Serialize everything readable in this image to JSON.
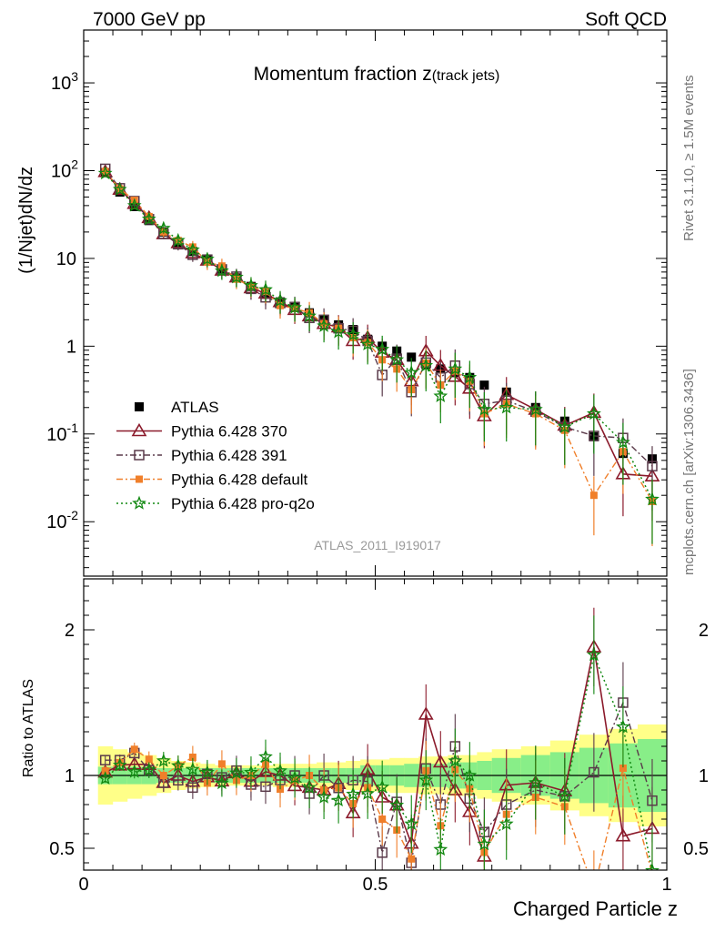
{
  "header": {
    "left": "7000 GeV pp",
    "right": "Soft QCD"
  },
  "side_texts": {
    "rivet": "Rivet 3.1.10, ≥ 1.5M events",
    "mcplots": "mcplots.cern.ch [arXiv:1306.3436]"
  },
  "watermark": "ATLAS_2011_I919017",
  "colors": {
    "data": "#000000",
    "p370": "#8b1a2b",
    "p391": "#5a3a4a",
    "pdefault": "#f07f2a",
    "pq2o": "#118811",
    "band_inner": "#88ee88",
    "band_outer": "#ffff88"
  },
  "chart_data": [
    {
      "type": "scatter",
      "title_main": "Momentum fraction ",
      "title_var": "z",
      "title_sub": "(track jets)",
      "ylabel": "(1/Njet)dN/dz",
      "yscale": "log",
      "ylim": [
        0.0024,
        4000
      ],
      "xlim": [
        0,
        1
      ],
      "y_ticks": [
        {
          "v": 0.01,
          "base": "10",
          "exp": "-2"
        },
        {
          "v": 0.1,
          "base": "10",
          "exp": "-1"
        },
        {
          "v": 1,
          "base": "1",
          "exp": ""
        },
        {
          "v": 10,
          "base": "10",
          "exp": ""
        },
        {
          "v": 100,
          "base": "10",
          "exp": "2"
        },
        {
          "v": 1000,
          "base": "10",
          "exp": "3"
        }
      ],
      "x": [
        0.037,
        0.062,
        0.087,
        0.112,
        0.137,
        0.162,
        0.187,
        0.212,
        0.237,
        0.262,
        0.287,
        0.312,
        0.337,
        0.362,
        0.387,
        0.412,
        0.437,
        0.462,
        0.487,
        0.512,
        0.537,
        0.562,
        0.587,
        0.612,
        0.637,
        0.662,
        0.687,
        0.725,
        0.775,
        0.825,
        0.875,
        0.925,
        0.975
      ],
      "data": [
        95,
        57,
        39,
        27,
        20,
        15,
        12,
        9.6,
        7.6,
        6.0,
        4.8,
        3.9,
        3.2,
        2.8,
        2.4,
        2.0,
        1.75,
        1.55,
        1.2,
        1.0,
        0.88,
        0.75,
        0.62,
        0.55,
        0.5,
        0.44,
        0.36,
        0.3,
        0.2,
        0.14,
        0.093,
        0.06,
        0.052
      ],
      "series": [
        {
          "name": "Pythia 6.428 370",
          "key": "p370",
          "values": [
            97,
            61,
            42,
            29,
            19,
            15,
            11.5,
            9.5,
            7.3,
            6.1,
            4.6,
            4.0,
            3.2,
            2.6,
            2.2,
            1.8,
            1.65,
            1.15,
            1.25,
            0.85,
            0.7,
            0.4,
            0.88,
            0.6,
            0.45,
            0.33,
            0.16,
            0.28,
            0.19,
            0.125,
            0.175,
            0.035,
            0.033
          ]
        },
        {
          "name": "Pythia 6.428 391",
          "key": "p391",
          "values": [
            105,
            63,
            45,
            28,
            19,
            14.5,
            11,
            9.7,
            7.5,
            6.2,
            4.5,
            3.6,
            3.1,
            2.8,
            2.1,
            2.0,
            1.6,
            1.5,
            1.15,
            0.47,
            0.72,
            0.3,
            0.65,
            0.44,
            0.6,
            0.37,
            0.22,
            0.24,
            0.18,
            0.12,
            0.095,
            0.09,
            0.043
          ]
        },
        {
          "name": "Pythia 6.428 default",
          "key": "pdefault",
          "values": [
            98,
            62,
            46,
            30,
            20,
            16,
            13.5,
            9.1,
            8.2,
            5.8,
            4.8,
            4.2,
            2.9,
            2.7,
            2.4,
            1.8,
            1.6,
            1.25,
            1.1,
            0.7,
            0.55,
            0.32,
            0.64,
            0.36,
            0.52,
            0.4,
            0.17,
            0.22,
            0.17,
            0.11,
            0.02,
            0.063,
            0.017
          ]
        },
        {
          "name": "Pythia 6.428 pro-q2o",
          "key": "pq2o",
          "values": [
            93,
            61,
            40,
            28,
            22,
            16,
            12.5,
            9.8,
            7.2,
            6.1,
            4.9,
            4.4,
            3.3,
            2.75,
            2.2,
            1.7,
            1.45,
            1.35,
            1.05,
            0.92,
            0.7,
            0.5,
            0.6,
            0.27,
            0.55,
            0.44,
            0.19,
            0.2,
            0.19,
            0.12,
            0.17,
            0.08,
            0.018
          ]
        }
      ],
      "legend": {
        "placement": "left-bottom",
        "entries": [
          "ATLAS",
          "Pythia 6.428 370",
          "Pythia 6.428 391",
          "Pythia 6.428 default",
          "Pythia 6.428 pro-q2o"
        ]
      }
    },
    {
      "type": "scatter",
      "xlabel": "Charged Particle z",
      "ylabel": "Ratio to ATLAS",
      "ylim": [
        0.35,
        2.35
      ],
      "xlim": [
        0,
        1
      ],
      "y_ticks": [
        {
          "v": 0.5,
          "label": "0.5"
        },
        {
          "v": 1,
          "label": "1"
        },
        {
          "v": 2,
          "label": "2"
        }
      ],
      "x_ticks": [
        {
          "v": 0,
          "label": "0"
        },
        {
          "v": 0.5,
          "label": "0.5"
        },
        {
          "v": 1,
          "label": "1"
        }
      ],
      "band_inner_halfwidth": [
        0.06,
        0.06,
        0.06,
        0.06,
        0.05,
        0.05,
        0.05,
        0.05,
        0.05,
        0.05,
        0.05,
        0.05,
        0.05,
        0.05,
        0.05,
        0.05,
        0.05,
        0.05,
        0.07,
        0.07,
        0.07,
        0.08,
        0.08,
        0.08,
        0.09,
        0.09,
        0.1,
        0.12,
        0.14,
        0.16,
        0.19,
        0.22,
        0.25
      ],
      "band_outer_halfwidth": [
        0.2,
        0.18,
        0.16,
        0.14,
        0.12,
        0.1,
        0.09,
        0.08,
        0.07,
        0.07,
        0.07,
        0.07,
        0.08,
        0.08,
        0.08,
        0.09,
        0.09,
        0.1,
        0.11,
        0.11,
        0.12,
        0.12,
        0.13,
        0.13,
        0.14,
        0.14,
        0.16,
        0.18,
        0.2,
        0.24,
        0.28,
        0.32,
        0.35
      ]
    }
  ]
}
